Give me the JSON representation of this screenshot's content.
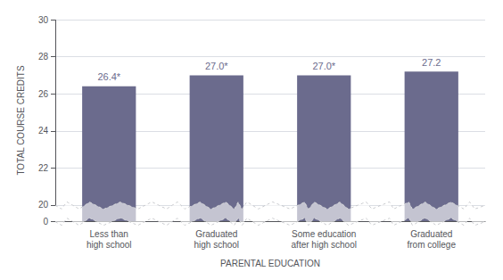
{
  "chart_data": {
    "type": "bar",
    "categories": [
      "Less than\nhigh school",
      "Graduated\nhigh school",
      "Some education\nafter high school",
      "Graduated\nfrom college"
    ],
    "values": [
      26.4,
      27.0,
      27.0,
      27.2
    ],
    "value_labels": [
      "26.4*",
      "27.0*",
      "27.0*",
      "27.2"
    ],
    "data_labels": true,
    "color": "#6b6b8d",
    "xlabel": "PARENTAL EDUCATION",
    "ylabel": "TOTAL COURSE CREDITS",
    "ylim": [
      0,
      30
    ],
    "yticks": [
      0,
      20,
      22,
      24,
      26,
      28,
      30
    ],
    "grid": true
  }
}
